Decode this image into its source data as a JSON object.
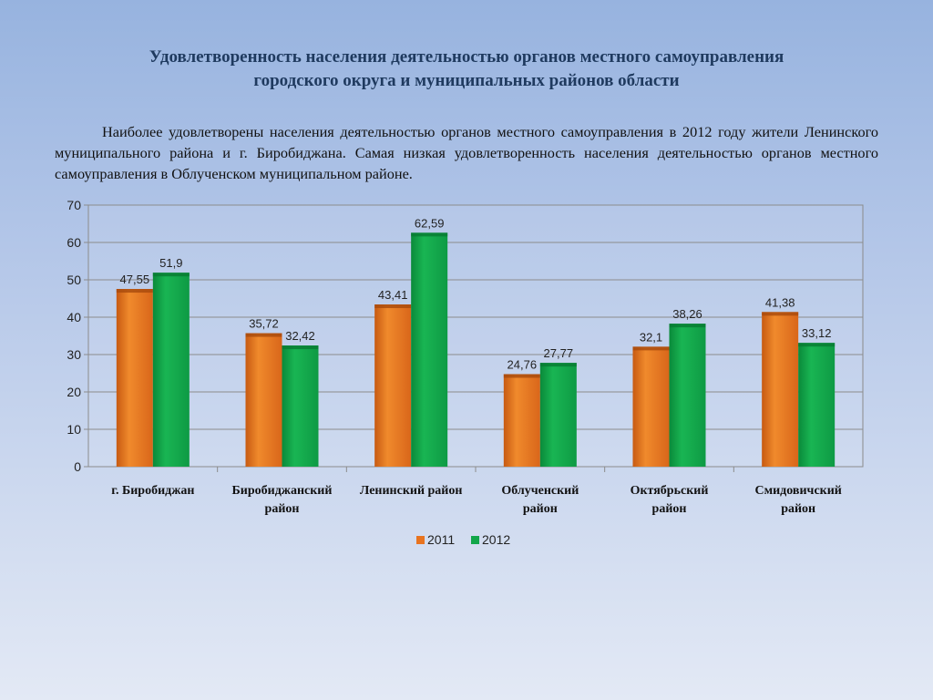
{
  "heading": {
    "line1": "Удовлетворенность населения деятельностью органов местного самоуправления",
    "line2": "городского округа и муниципальных районов области"
  },
  "paragraph": "Наиболее удовлетворены населения деятельностью органов местного самоуправления в 2012 году жители Ленинского муниципального района и г. Биробиджана. Самая низкая удовлетворенность населения деятельностью органов местного самоуправления в Облученском муниципальном районе.",
  "chart_data": {
    "type": "bar",
    "categories": [
      [
        "г. Биробиджан"
      ],
      [
        "Биробиджанский",
        "район"
      ],
      [
        "Ленинский район"
      ],
      [
        "Облученский",
        "район"
      ],
      [
        "Октябрьский",
        "район"
      ],
      [
        "Смидовичский",
        "район"
      ]
    ],
    "series": [
      {
        "name": "2011",
        "values": [
          47.55,
          35.72,
          43.41,
          24.76,
          32.1,
          41.38
        ],
        "labels": [
          "47,55",
          "35,72",
          "43,41",
          "24,76",
          "32,1",
          "41,38"
        ],
        "color": "#e8731f"
      },
      {
        "name": "2012",
        "values": [
          51.9,
          32.42,
          62.59,
          27.77,
          38.26,
          33.12
        ],
        "labels": [
          "51,9",
          "32,42",
          "62,59",
          "27,77",
          "38,26",
          "33,12"
        ],
        "color": "#12a64a"
      }
    ],
    "ylim": [
      0,
      70
    ],
    "yticks": [
      0,
      10,
      20,
      30,
      40,
      50,
      60,
      70
    ],
    "grid": true,
    "legend": "bottom"
  }
}
